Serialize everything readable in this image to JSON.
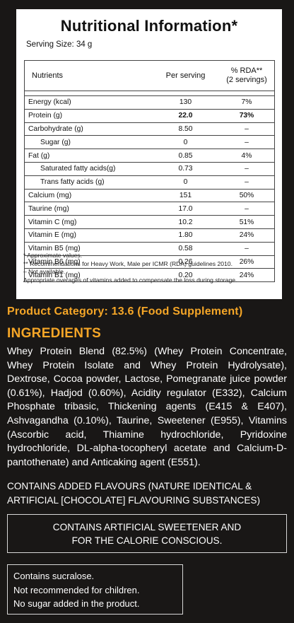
{
  "panel": {
    "title": "Nutritional Information*",
    "serving": "Serving Size: 34 g",
    "headers": {
      "nutrients": "Nutrients",
      "per_serving": "Per serving",
      "rda_line1": "% RDA**",
      "rda_line2": "(2 servings)"
    },
    "rows": [
      {
        "name": "Energy (kcal)",
        "value": "130",
        "rda": "7%"
      },
      {
        "name": "Protein (g)",
        "value": "22.0",
        "rda": "73%"
      },
      {
        "name": "Carbohydrate (g)",
        "value": "8.50",
        "rda": "–"
      },
      {
        "name": "Sugar (g)",
        "value": "0",
        "rda": "–"
      },
      {
        "name": "Fat (g)",
        "value": "0.85",
        "rda": "4%"
      },
      {
        "name": "Saturated fatty acids(g)",
        "value": "0.73",
        "rda": "–"
      },
      {
        "name": "Trans fatty acids (g)",
        "value": "0",
        "rda": "–"
      },
      {
        "name": "Calcium (mg)",
        "value": "151",
        "rda": "50%"
      },
      {
        "name": "Taurine (mg)",
        "value": "17.0",
        "rda": "–"
      },
      {
        "name": "Vitamin C (mg)",
        "value": "10.2",
        "rda": "51%"
      },
      {
        "name": "Vitamin E (mg)",
        "value": "1.80",
        "rda": "24%"
      },
      {
        "name": "Vitamin B5 (mg)",
        "value": "0.58",
        "rda": "–"
      },
      {
        "name": "Vitamin B6 (mg)",
        "value": "0.26",
        "rda": "26%"
      },
      {
        "name": "Vitamin B1 (mg)",
        "value": "0.20",
        "rda": "24%"
      }
    ],
    "notes": [
      "*  Approximate values.",
      "** Recommendations for Heavy Work, Male per ICMR (RDA) guidelines 2010.",
      "–  Not available.",
      "Appropriate overages of vitamins added to compensate the loss during storage."
    ]
  },
  "category": "Product Category: 13.6 (Food Supplement)",
  "ingredients": {
    "title": "INGREDIENTS",
    "text": "Whey Protein Blend (82.5%) (Whey Protein Concentrate, Whey Protein Isolate and Whey Protein Hydrolysate), Dextrose, Cocoa powder, Lactose, Pomegranate juice powder (0.61%), Hadjod (0.60%), Acidity regulator (E332), Calcium Phosphate tribasic, Thickening agents (E415 & E407), Ashvagandha (0.10%), Taurine, Sweetener (E955), Vitamins (Ascorbic acid, Thiamine hydrochloride, Pyridoxine hydrochloride, DL-alpha-tocopheryl acetate and Calcium-D-pantothenate) and Anticaking agent (E551)."
  },
  "flavours": "CONTAINS ADDED FLAVOURS (NATURE IDENTICAL & ARTIFICIAL [CHOCOLATE] FLAVOURING SUBSTANCES)",
  "sweetener_box": {
    "line1": "CONTAINS ARTIFICIAL SWEETENER AND",
    "line2": "FOR THE CALORIE CONSCIOUS."
  },
  "warning_box": {
    "line1": "Contains sucralose.",
    "line2": "Not recommended for children.",
    "line3": "No sugar added in the product."
  }
}
